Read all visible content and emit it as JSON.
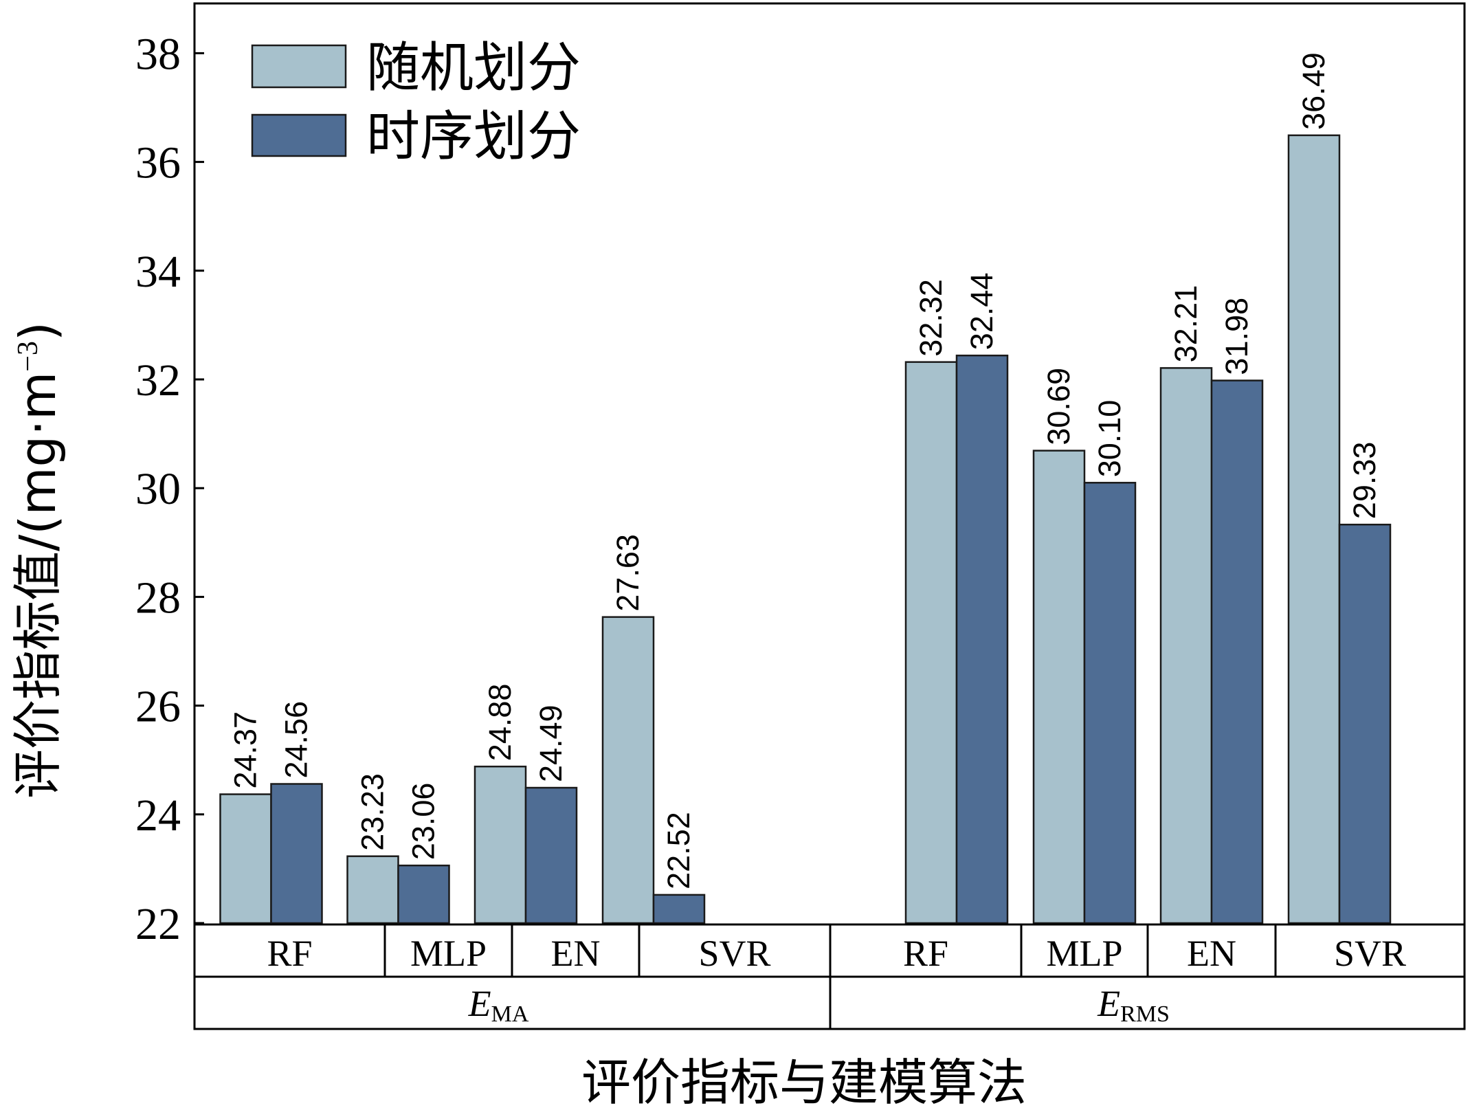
{
  "chart_data": {
    "type": "bar",
    "title": "",
    "ylabel": "评价指标值/(mg·m",
    "ylabel_sup": "−3",
    "ylabel_close": ")",
    "xlabel": "评价指标与建模算法",
    "ylim": [
      22,
      39
    ],
    "yticks": [
      22,
      24,
      26,
      28,
      30,
      32,
      34,
      36,
      38
    ],
    "groups": [
      {
        "name": "E",
        "sub": "MA"
      },
      {
        "name": "E",
        "sub": "RMS"
      }
    ],
    "categories": [
      "RF",
      "MLP",
      "EN",
      "SVR"
    ],
    "series": [
      {
        "name": "随机划分",
        "color": "#a7c1cc",
        "values": [
          [
            24.37,
            23.23,
            24.88,
            27.63
          ],
          [
            32.32,
            30.69,
            32.21,
            36.49
          ]
        ]
      },
      {
        "name": "时序划分",
        "color": "#4f6d94",
        "values": [
          [
            24.56,
            23.06,
            24.49,
            22.52
          ],
          [
            32.44,
            30.1,
            31.98,
            29.33
          ]
        ]
      }
    ],
    "value_labels": [
      [
        [
          "24.37",
          "23.23",
          "24.88",
          "27.63"
        ],
        [
          "32.32",
          "30.69",
          "32.21",
          "36.49"
        ]
      ],
      [
        [
          "24.56",
          "23.06",
          "24.49",
          "22.52"
        ],
        [
          "32.44",
          "30.10",
          "31.98",
          "29.33"
        ]
      ]
    ],
    "legend": "top-left",
    "grid": false
  }
}
